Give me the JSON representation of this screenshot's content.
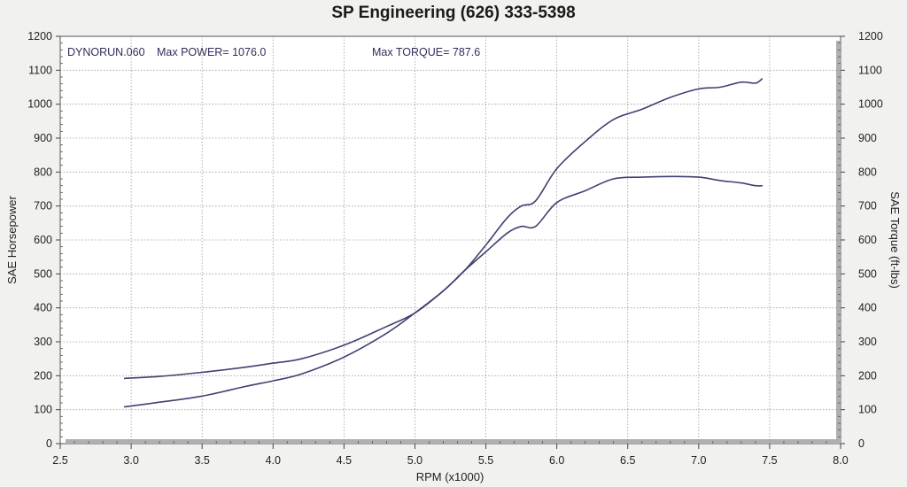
{
  "chart_data": {
    "type": "line",
    "title": "SP Engineering (626) 333-5398",
    "xlabel": "RPM (x1000)",
    "ylabel_left": "SAE Horsepower",
    "ylabel_right": "SAE Torque (ft-lbs)",
    "xlim": [
      2.5,
      8.0
    ],
    "ylim": [
      0,
      1200
    ],
    "x_ticks": [
      "2.5",
      "3.0",
      "3.5",
      "4.0",
      "4.5",
      "5.0",
      "5.5",
      "6.0",
      "6.5",
      "7.0",
      "7.5",
      "8.0"
    ],
    "y_ticks": [
      "0",
      "100",
      "200",
      "300",
      "400",
      "500",
      "600",
      "700",
      "800",
      "900",
      "1000",
      "1100",
      "1200"
    ],
    "grid": true,
    "annotations": {
      "run": "DYNORUN.060",
      "max_power": "Max POWER= 1076.0",
      "max_torque": "Max TORQUE= 787.6"
    },
    "series": [
      {
        "name": "SAE Horsepower",
        "color": "#3f4170",
        "x": [
          2.95,
          3.2,
          3.5,
          3.8,
          4.0,
          4.2,
          4.5,
          4.8,
          5.0,
          5.2,
          5.35,
          5.5,
          5.65,
          5.75,
          5.85,
          6.0,
          6.2,
          6.4,
          6.6,
          6.8,
          7.0,
          7.15,
          7.3,
          7.4,
          7.45
        ],
        "y": [
          108,
          122,
          140,
          168,
          185,
          205,
          255,
          325,
          385,
          450,
          510,
          585,
          665,
          700,
          715,
          810,
          890,
          955,
          985,
          1020,
          1045,
          1050,
          1065,
          1062,
          1076
        ]
      },
      {
        "name": "SAE Torque (ft-lbs)",
        "color": "#3f4170",
        "x": [
          2.95,
          3.2,
          3.5,
          3.8,
          4.0,
          4.2,
          4.5,
          4.8,
          5.0,
          5.2,
          5.35,
          5.5,
          5.65,
          5.75,
          5.85,
          6.0,
          6.2,
          6.4,
          6.6,
          6.8,
          7.0,
          7.15,
          7.3,
          7.4,
          7.45
        ],
        "y": [
          192,
          198,
          210,
          225,
          237,
          250,
          290,
          345,
          385,
          450,
          510,
          565,
          620,
          640,
          640,
          710,
          745,
          780,
          785,
          787,
          785,
          775,
          768,
          760,
          760
        ]
      }
    ]
  }
}
